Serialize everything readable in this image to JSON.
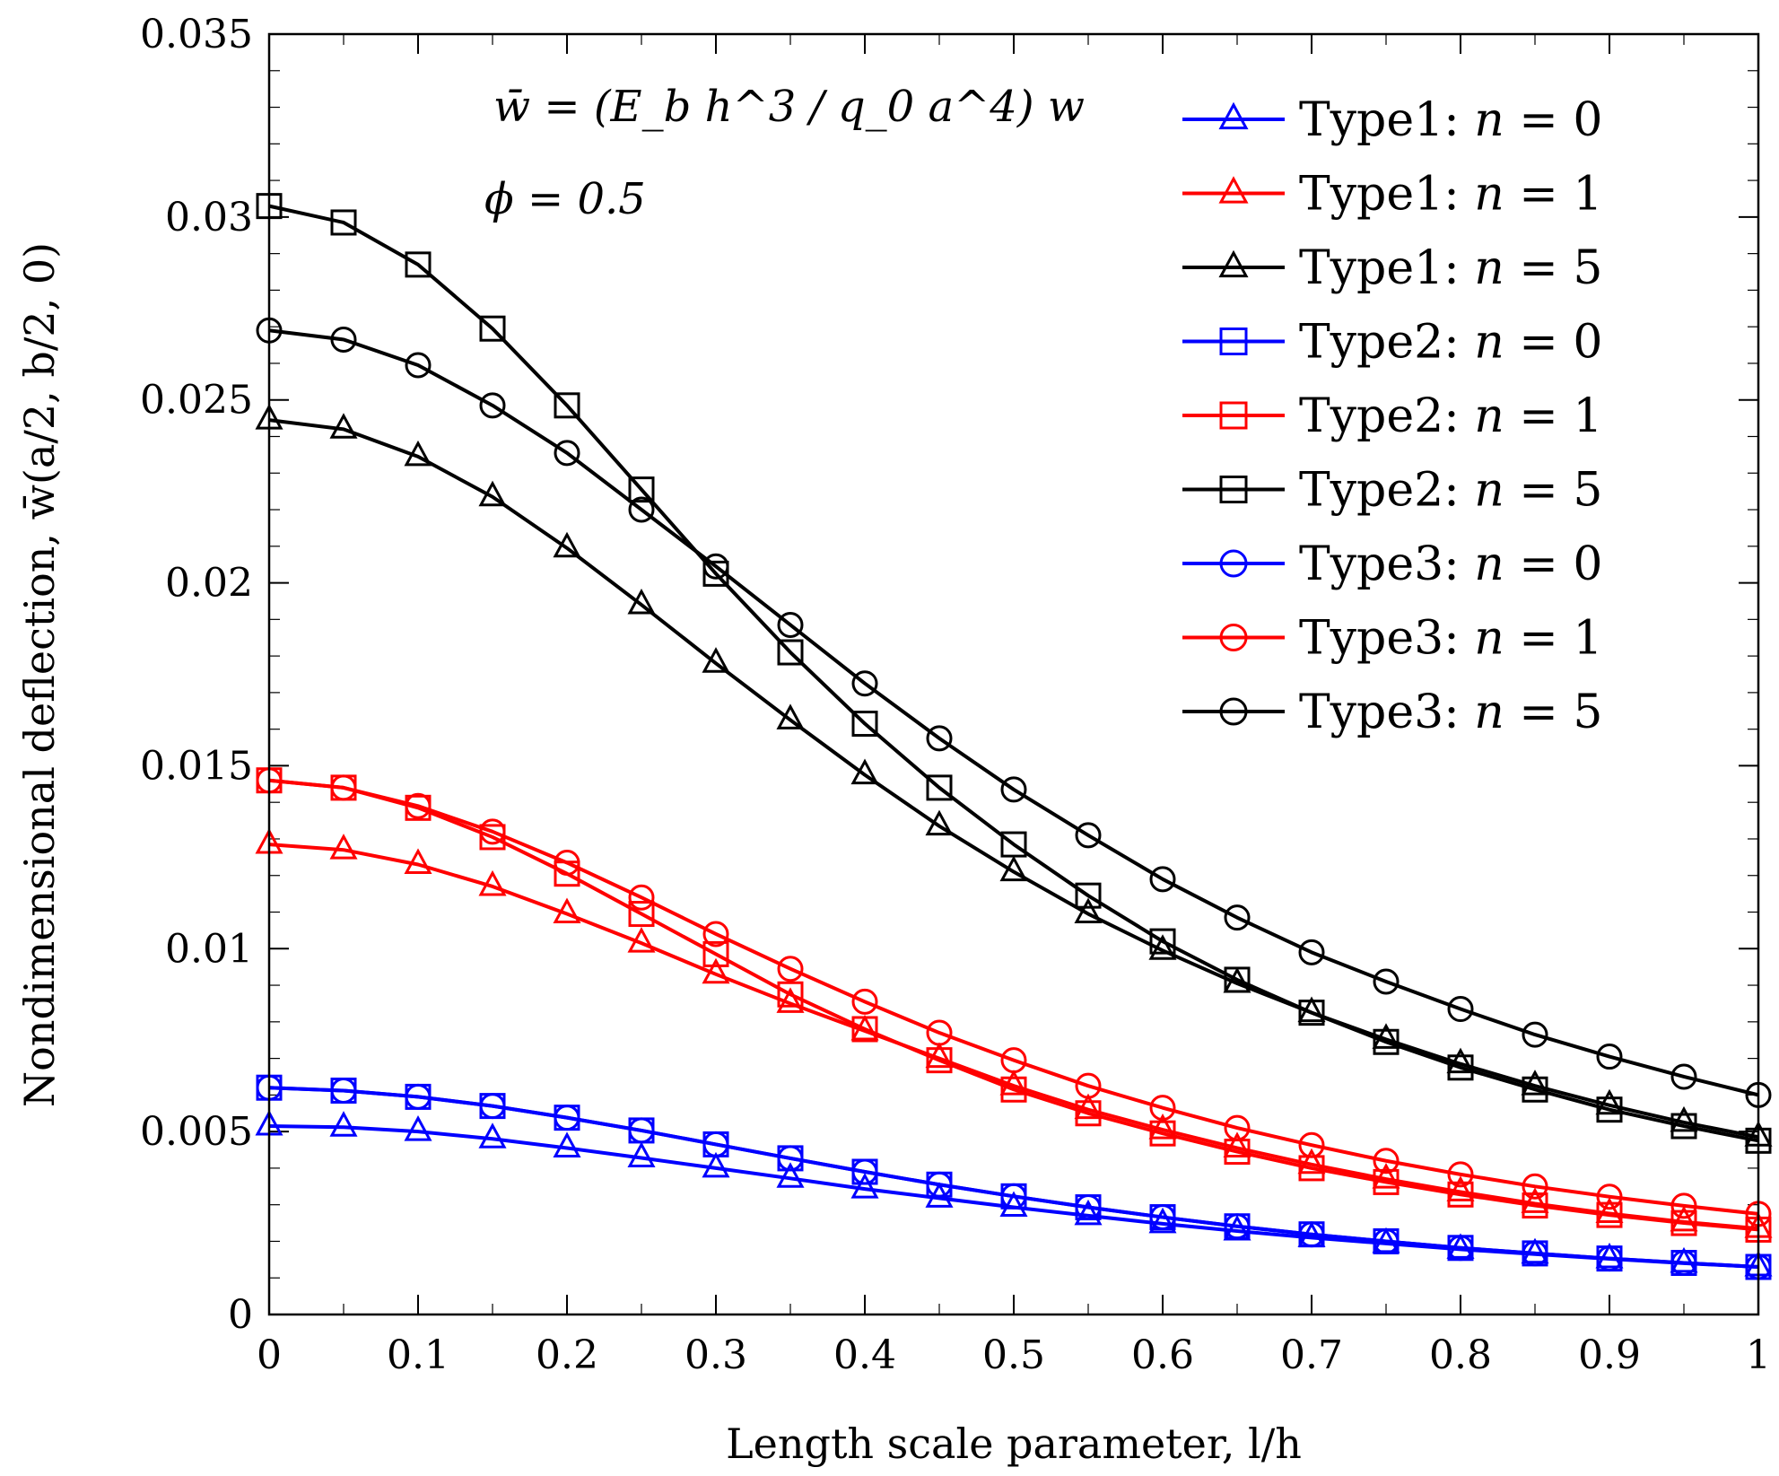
{
  "chart_data": {
    "type": "line",
    "xlabel": "Length scale parameter, l/h",
    "ylabel": "Nondimensional deflection, w̄(a/2, b/2, 0)",
    "xlim": [
      0,
      1
    ],
    "ylim": [
      0,
      0.035
    ],
    "xticks": [
      0,
      0.1,
      0.2,
      0.3,
      0.4,
      0.5,
      0.6,
      0.7,
      0.8,
      0.9,
      1
    ],
    "xtick_labels": [
      "0",
      "0.1",
      "0.2",
      "0.3",
      "0.4",
      "0.5",
      "0.6",
      "0.7",
      "0.8",
      "0.9",
      "1"
    ],
    "yticks": [
      0,
      0.005,
      0.01,
      0.015,
      0.02,
      0.025,
      0.03,
      0.035
    ],
    "ytick_labels": [
      "0",
      "0.005",
      "0.01",
      "0.015",
      "0.02",
      "0.025",
      "0.03",
      "0.035"
    ],
    "annotations": {
      "formula": "w̄ = (E_b h^3 / q_0 a^4) w",
      "phi": "ϕ = 0.5"
    },
    "legend_position": "top-right",
    "x": [
      0,
      0.05,
      0.1,
      0.15,
      0.2,
      0.25,
      0.3,
      0.35,
      0.4,
      0.45,
      0.5,
      0.55,
      0.6,
      0.65,
      0.7,
      0.75,
      0.8,
      0.85,
      0.9,
      0.95,
      1.0
    ],
    "series": [
      {
        "name": "Type1: n = 0",
        "type_label": "Type1:",
        "n_value": "0",
        "color": "#0000ff",
        "marker": "triangle",
        "values": [
          0.00515,
          0.00512,
          0.005,
          0.0048,
          0.00455,
          0.00428,
          0.004,
          0.00372,
          0.00343,
          0.00318,
          0.00293,
          0.0027,
          0.00248,
          0.00228,
          0.0021,
          0.00194,
          0.00178,
          0.00165,
          0.00152,
          0.0014,
          0.0013
        ]
      },
      {
        "name": "Type1: n = 1",
        "type_label": "Type1:",
        "n_value": "1",
        "color": "#ff0000",
        "marker": "triangle",
        "values": [
          0.01285,
          0.0127,
          0.0123,
          0.0117,
          0.01095,
          0.01015,
          0.0093,
          0.0085,
          0.00775,
          0.007,
          0.00625,
          0.0056,
          0.00505,
          0.00455,
          0.0041,
          0.0037,
          0.00335,
          0.00303,
          0.00276,
          0.00253,
          0.00235
        ]
      },
      {
        "name": "Type1: n = 5",
        "type_label": "Type1:",
        "n_value": "5",
        "color": "#000000",
        "marker": "triangle",
        "values": [
          0.02445,
          0.0242,
          0.02345,
          0.02235,
          0.02095,
          0.0194,
          0.0178,
          0.01625,
          0.01475,
          0.01335,
          0.0121,
          0.01095,
          0.00995,
          0.00905,
          0.00825,
          0.00752,
          0.00685,
          0.00625,
          0.00572,
          0.00525,
          0.00485
        ]
      },
      {
        "name": "Type2: n = 0",
        "type_label": "Type2:",
        "n_value": "0",
        "color": "#0000ff",
        "marker": "square",
        "values": [
          0.0062,
          0.00612,
          0.00595,
          0.0057,
          0.00538,
          0.00503,
          0.00465,
          0.00427,
          0.0039,
          0.00355,
          0.00323,
          0.00293,
          0.00266,
          0.00241,
          0.00219,
          0.002,
          0.00182,
          0.00167,
          0.00153,
          0.00141,
          0.0013
        ]
      },
      {
        "name": "Type2: n = 1",
        "type_label": "Type2:",
        "n_value": "1",
        "color": "#ff0000",
        "marker": "square",
        "values": [
          0.0146,
          0.0144,
          0.01385,
          0.01305,
          0.01205,
          0.01095,
          0.00985,
          0.00875,
          0.0078,
          0.00695,
          0.00615,
          0.0055,
          0.00495,
          0.00445,
          0.004,
          0.00362,
          0.00328,
          0.00298,
          0.00272,
          0.0025,
          0.00232
        ]
      },
      {
        "name": "Type2: n = 5",
        "type_label": "Type2:",
        "n_value": "5",
        "color": "#000000",
        "marker": "square",
        "values": [
          0.0303,
          0.02985,
          0.0287,
          0.02695,
          0.02485,
          0.02255,
          0.02025,
          0.0181,
          0.01615,
          0.0144,
          0.01285,
          0.01145,
          0.0102,
          0.00915,
          0.00825,
          0.00745,
          0.00675,
          0.00615,
          0.0056,
          0.00515,
          0.00475
        ]
      },
      {
        "name": "Type3: n = 0",
        "type_label": "Type3:",
        "n_value": "0",
        "color": "#0000ff",
        "marker": "circle",
        "values": [
          0.0062,
          0.00612,
          0.00595,
          0.0057,
          0.00538,
          0.00503,
          0.00465,
          0.00427,
          0.0039,
          0.00355,
          0.00323,
          0.00293,
          0.00266,
          0.00241,
          0.00219,
          0.002,
          0.00182,
          0.00167,
          0.00153,
          0.00141,
          0.0013
        ]
      },
      {
        "name": "Type3: n = 1",
        "type_label": "Type3:",
        "n_value": "1",
        "color": "#ff0000",
        "marker": "circle",
        "values": [
          0.0146,
          0.0144,
          0.0139,
          0.0132,
          0.01235,
          0.0114,
          0.0104,
          0.00945,
          0.00855,
          0.0077,
          0.00695,
          0.00625,
          0.00565,
          0.0051,
          0.00463,
          0.0042,
          0.00383,
          0.0035,
          0.00322,
          0.00297,
          0.00275
        ]
      },
      {
        "name": "Type3: n = 5",
        "type_label": "Type3:",
        "n_value": "5",
        "color": "#000000",
        "marker": "circle",
        "values": [
          0.0269,
          0.02665,
          0.02595,
          0.02485,
          0.02355,
          0.022,
          0.02045,
          0.01885,
          0.01725,
          0.01575,
          0.01435,
          0.0131,
          0.0119,
          0.01085,
          0.0099,
          0.0091,
          0.00835,
          0.00765,
          0.00705,
          0.0065,
          0.006
        ]
      }
    ]
  }
}
